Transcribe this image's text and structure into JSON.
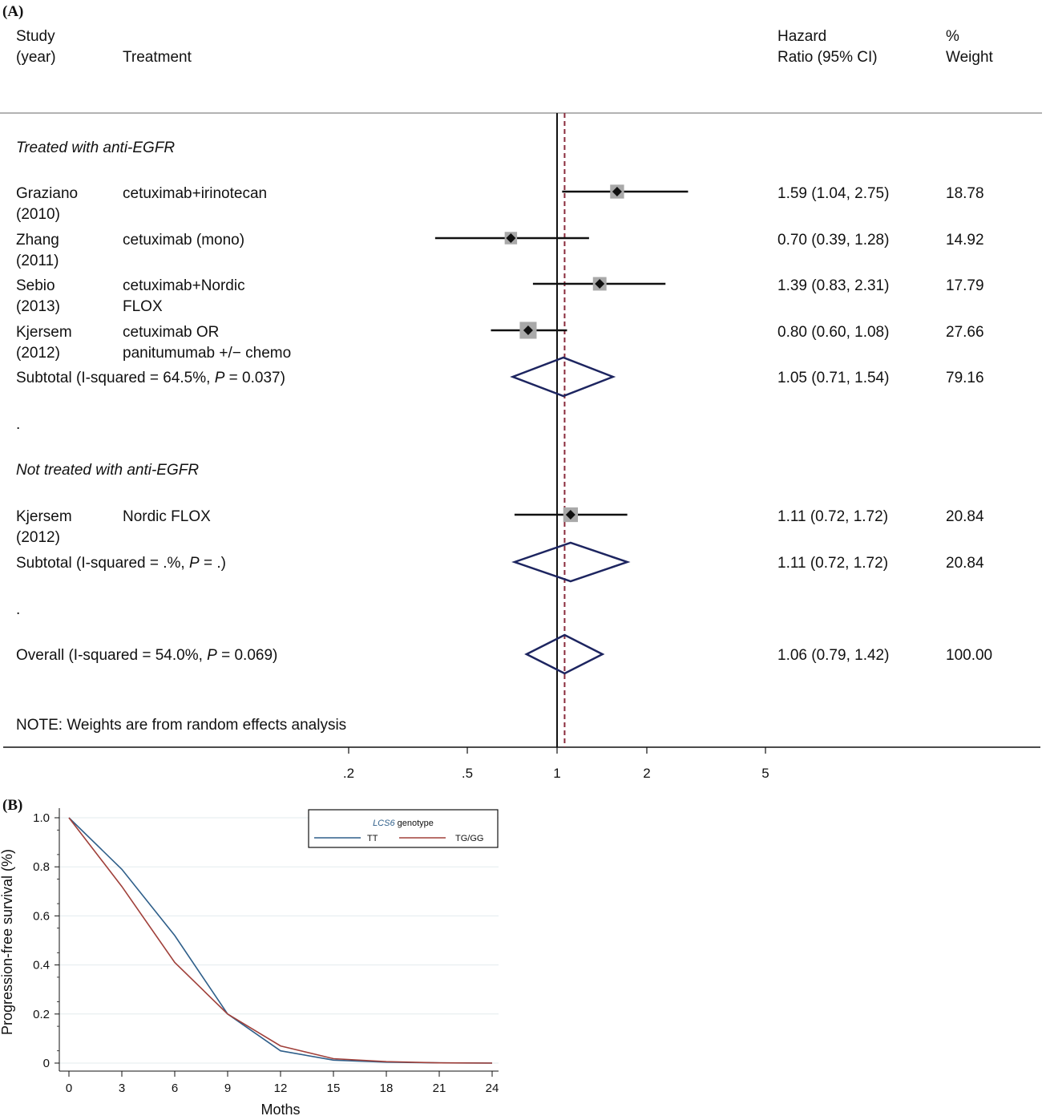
{
  "panel_a": {
    "letter": "(A)",
    "headers": {
      "study_line1": "Study",
      "study_line2": "(year)",
      "treatment": "Treatment",
      "hr_line1": "Hazard",
      "hr_line2": "Ratio (95% CI)",
      "weight_line1": "%",
      "weight_line2": "Weight"
    },
    "group1_title": "Treated with anti-EGFR",
    "group2_title": "Not treated with anti-EGFR",
    "dot1": ".",
    "dot2": ".",
    "note": "NOTE: Weights are from random effects analysis",
    "subtotal1": {
      "prefix": "Subtotal  (I-squared = 64.5%, ",
      "p": "P",
      "suffix": " = 0.037)"
    },
    "subtotal2": {
      "prefix": "Subtotal  (I-squared = .%, ",
      "p": "P",
      "suffix": " = .)"
    },
    "overall": {
      "prefix": "Overall  (I-squared = 54.0%, ",
      "p": "P",
      "suffix": " = 0.069)"
    }
  },
  "chart_data": [
    {
      "type": "forest",
      "x_scale": "log",
      "x_ticks": [
        0.2,
        0.5,
        1,
        2,
        5
      ],
      "x_tick_labels": [
        ".2",
        ".5",
        "1",
        "2",
        "5"
      ],
      "null_line": 1,
      "pooled_line": 1.06,
      "studies": [
        {
          "study": "Graziano",
          "year": "(2010)",
          "treatment": [
            "cetuximab+irinotecan"
          ],
          "hr": 1.59,
          "lo": 1.04,
          "hi": 2.75,
          "ci_text": "1.59 (1.04, 2.75)",
          "weight": 18.78,
          "weight_text": "18.78",
          "group": 1
        },
        {
          "study": "Zhang",
          "year": "(2011)",
          "treatment": [
            "cetuximab (mono)"
          ],
          "hr": 0.7,
          "lo": 0.39,
          "hi": 1.28,
          "ci_text": "0.70 (0.39, 1.28)",
          "weight": 14.92,
          "weight_text": "14.92",
          "group": 1
        },
        {
          "study": "Sebio",
          "year": "(2013)",
          "treatment": [
            "cetuximab+Nordic",
            "FLOX"
          ],
          "hr": 1.39,
          "lo": 0.83,
          "hi": 2.31,
          "ci_text": "1.39 (0.83, 2.31)",
          "weight": 17.79,
          "weight_text": "17.79",
          "group": 1
        },
        {
          "study": "Kjersem",
          "year": "(2012)",
          "treatment": [
            "cetuximab OR",
            "panitumumab +/− chemo"
          ],
          "hr": 0.8,
          "lo": 0.6,
          "hi": 1.08,
          "ci_text": "0.80 (0.60, 1.08)",
          "weight": 27.66,
          "weight_text": "27.66",
          "group": 1
        },
        {
          "study": "Kjersem",
          "year": "(2012)",
          "treatment": [
            "Nordic FLOX"
          ],
          "hr": 1.11,
          "lo": 0.72,
          "hi": 1.72,
          "ci_text": "1.11 (0.72, 1.72)",
          "weight": 20.84,
          "weight_text": "20.84",
          "group": 2
        }
      ],
      "pooled": [
        {
          "name": "Subtotal 1",
          "hr": 1.05,
          "lo": 0.71,
          "hi": 1.54,
          "ci_text": "1.05 (0.71, 1.54)",
          "weight_text": "79.16"
        },
        {
          "name": "Subtotal 2",
          "hr": 1.11,
          "lo": 0.72,
          "hi": 1.72,
          "ci_text": "1.11 (0.72, 1.72)",
          "weight_text": "20.84"
        },
        {
          "name": "Overall",
          "hr": 1.06,
          "lo": 0.79,
          "hi": 1.42,
          "ci_text": "1.06 (0.79, 1.42)",
          "weight_text": "100.00"
        }
      ]
    },
    {
      "type": "line",
      "panel": "(B)",
      "xlabel": "Moths",
      "ylabel": "Progression-free survival (%)",
      "x_ticks": [
        0,
        3,
        6,
        9,
        12,
        15,
        18,
        21,
        24
      ],
      "y_ticks": [
        0,
        0.2,
        0.4,
        0.6,
        0.8,
        1.0
      ],
      "y_tick_labels": [
        "0",
        "0.2",
        "0.4",
        "0.6",
        "0.8",
        "1.0"
      ],
      "xlim": [
        0,
        24
      ],
      "ylim": [
        0,
        1.0
      ],
      "grid": true,
      "legend": {
        "title_italic": "LCS6",
        "title_rest": " genotype",
        "placement": "top-right"
      },
      "series": [
        {
          "name": "TT",
          "color": "#2f5f8a",
          "x": [
            0,
            3,
            6,
            9,
            12,
            15,
            18,
            21,
            24
          ],
          "y": [
            1.0,
            0.79,
            0.52,
            0.2,
            0.05,
            0.012,
            0.004,
            0.001,
            0.0
          ]
        },
        {
          "name": "TG/GG",
          "color": "#a0403a",
          "x": [
            0,
            3,
            6,
            9,
            12,
            15,
            18,
            21,
            24
          ],
          "y": [
            1.0,
            0.72,
            0.41,
            0.2,
            0.07,
            0.018,
            0.006,
            0.001,
            0.0
          ]
        }
      ]
    }
  ]
}
